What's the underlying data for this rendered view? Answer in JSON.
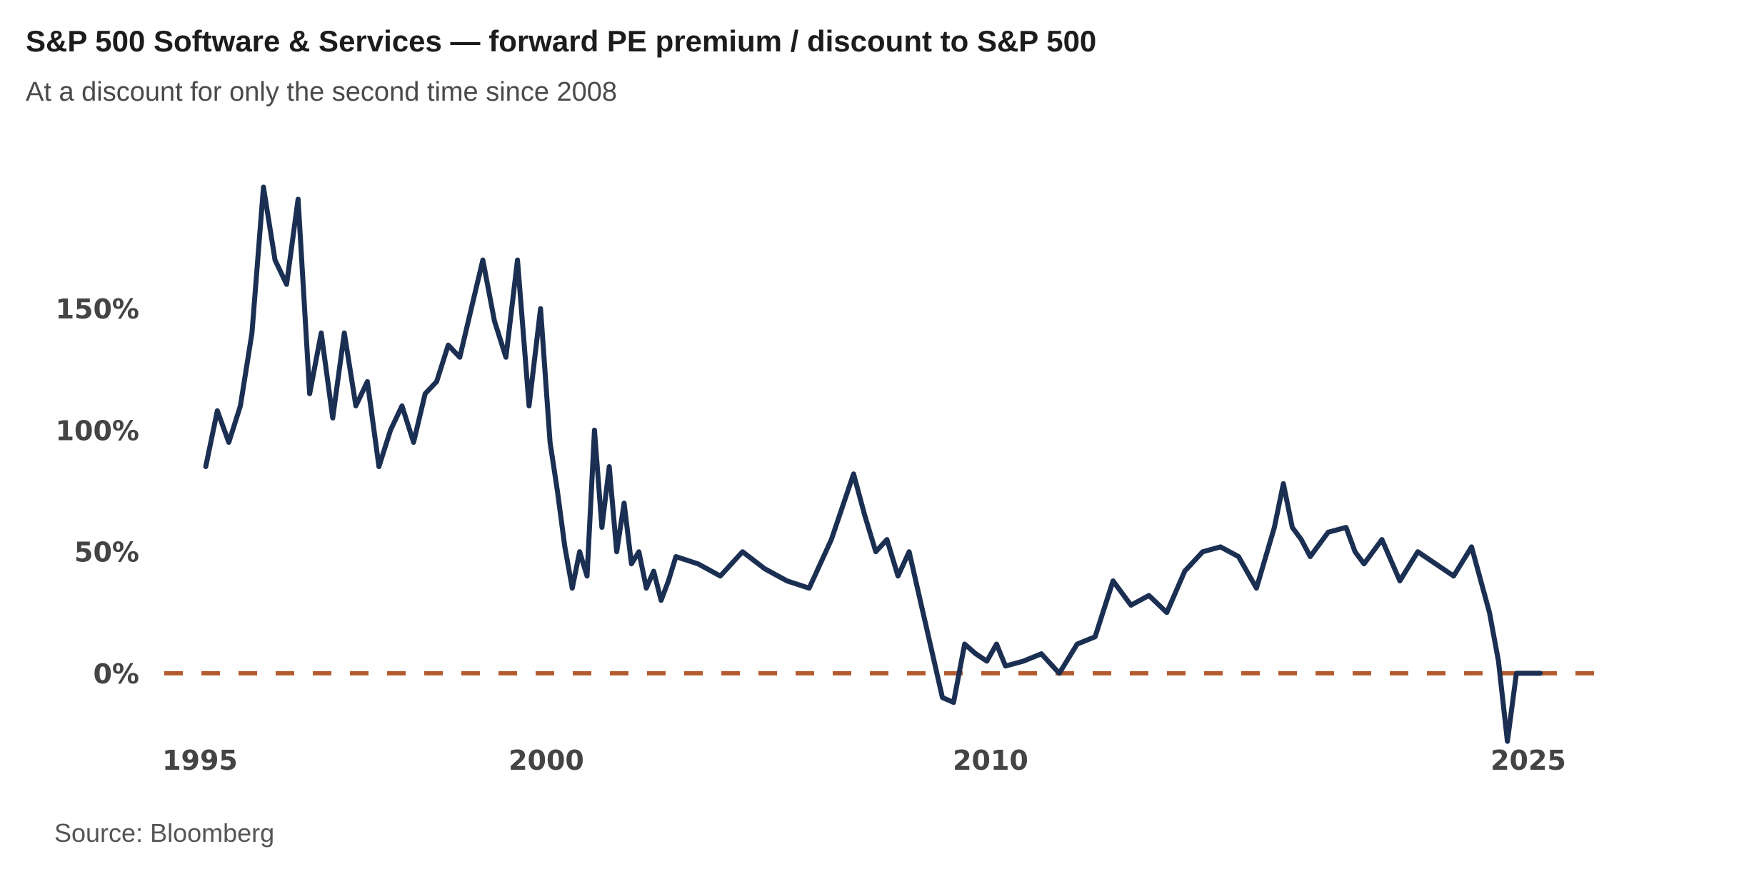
{
  "title": "S&P 500 Software & Services — forward PE premium / discount to S&P 500",
  "subtitle": "At a discount for only the second time since 2008",
  "source": "Source: Bloomberg",
  "colors": {
    "line": "#1b2f52",
    "zero_line": "#b55a2c",
    "text": "#444444"
  },
  "chart_data": {
    "type": "line",
    "title": "S&P 500 Software & Services — forward PE premium / discount to S&P 500",
    "subtitle": "At a discount for only the second time since 2008",
    "xlabel": "",
    "ylabel": "",
    "x_tick_labels": [
      "1995",
      "2000",
      "2010",
      "2025"
    ],
    "y_tick_labels": [
      "0%",
      "50%",
      "100%",
      "150%"
    ],
    "y_tick_values": [
      0,
      50,
      100,
      150
    ],
    "ylim": [
      -30,
      205
    ],
    "grid": false,
    "reference_line": {
      "y": 0,
      "style": "dashed"
    },
    "series": [
      {
        "x": [
          "1995-02",
          "1995-04",
          "1995-06",
          "1995-08",
          "1995-10",
          "1995-12",
          "1996-02",
          "1996-04",
          "1996-06",
          "1996-08",
          "1996-10",
          "1996-12",
          "1997-02",
          "1997-04",
          "1997-06",
          "1997-08",
          "1997-10",
          "1997-12",
          "1998-02",
          "1998-04",
          "1998-06",
          "1998-08",
          "1998-10",
          "1998-12",
          "1999-02",
          "1999-04",
          "1999-06",
          "1999-08",
          "1999-10",
          "1999-12",
          "2000-02",
          "2000-04",
          "2000-06",
          "2000-08",
          "2000-10",
          "2000-12",
          "2001-02",
          "2001-04",
          "2001-06",
          "2001-08",
          "2001-10",
          "2001-12",
          "2002-02",
          "2002-04",
          "2002-06",
          "2002-08",
          "2002-10",
          "2002-12",
          "2003-06",
          "2003-12",
          "2004-06",
          "2004-12",
          "2005-06",
          "2005-12",
          "2006-06",
          "2006-12",
          "2007-03",
          "2007-06",
          "2007-09",
          "2007-12",
          "2008-03",
          "2008-06",
          "2008-09",
          "2008-12",
          "2009-03",
          "2009-06",
          "2009-09",
          "2009-12",
          "2010-03",
          "2010-06",
          "2010-12",
          "2011-06",
          "2011-12",
          "2012-06",
          "2012-12",
          "2013-06",
          "2013-12",
          "2014-06",
          "2014-12",
          "2015-06",
          "2015-12",
          "2016-06",
          "2016-12",
          "2017-06",
          "2017-12",
          "2018-03",
          "2018-06",
          "2018-09",
          "2018-12",
          "2019-06",
          "2019-12",
          "2020-03",
          "2020-06",
          "2020-12",
          "2021-06",
          "2021-12",
          "2022-06",
          "2022-12",
          "2023-06",
          "2023-12",
          "2024-03",
          "2024-06",
          "2024-09",
          "2024-12",
          "2025-01",
          "2025-02",
          "2025-03",
          "2025-04",
          "2025-05"
        ],
        "values": [
          85,
          108,
          95,
          110,
          140,
          200,
          170,
          160,
          195,
          115,
          140,
          105,
          140,
          110,
          120,
          85,
          100,
          110,
          95,
          115,
          120,
          135,
          130,
          150,
          170,
          145,
          130,
          170,
          110,
          150,
          95,
          75,
          52,
          35,
          50,
          40,
          100,
          60,
          85,
          50,
          70,
          45,
          50,
          35,
          42,
          30,
          38,
          48,
          45,
          40,
          50,
          43,
          38,
          35,
          55,
          82,
          65,
          50,
          55,
          40,
          50,
          30,
          10,
          -10,
          -12,
          12,
          8,
          5,
          12,
          3,
          5,
          8,
          0,
          12,
          15,
          38,
          28,
          32,
          25,
          42,
          50,
          52,
          48,
          35,
          60,
          78,
          60,
          55,
          48,
          58,
          60,
          50,
          45,
          55,
          38,
          50,
          45,
          40,
          52,
          25,
          5,
          -28,
          0,
          0,
          0,
          0,
          0,
          0,
          0
        ]
      }
    ]
  }
}
